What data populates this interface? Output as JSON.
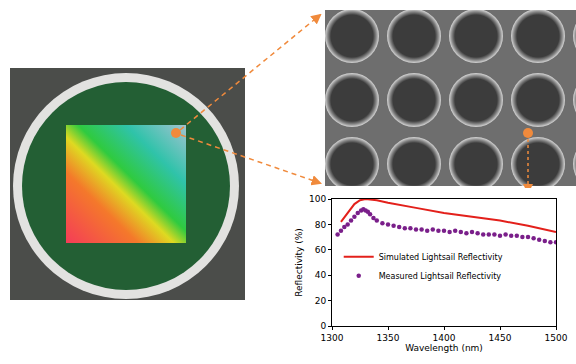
{
  "chart_data": {
    "type": "line",
    "x_label": "Wavelength (nm)",
    "y_label": "Reflectivity (%)",
    "xlim": [
      1300,
      1500
    ],
    "xticks": [
      1300,
      1350,
      1400,
      1450,
      1500
    ],
    "ylim": [
      0,
      100
    ],
    "yticks": [
      0,
      20,
      40,
      60,
      80,
      100
    ],
    "grid": false,
    "legend": "center left",
    "series": [
      {
        "name": "Simulated Lightsail Reflectivity",
        "type": "line",
        "color": "#e3201b",
        "line_style": "solid",
        "x": [
          1308,
          1315,
          1320,
          1325,
          1330,
          1340,
          1350,
          1375,
          1400,
          1425,
          1450,
          1475,
          1500
        ],
        "values": [
          82,
          90,
          96,
          99,
          100,
          99,
          97,
          93,
          89,
          86,
          83,
          79,
          74
        ]
      },
      {
        "name": "Measured Lightsail Reflectivity",
        "type": "scatter",
        "color": "#7a1f8a",
        "marker": "circle",
        "x": [
          1305,
          1308,
          1311,
          1314,
          1317,
          1320,
          1323,
          1326,
          1328,
          1330,
          1332,
          1334,
          1337,
          1340,
          1345,
          1350,
          1355,
          1360,
          1365,
          1370,
          1375,
          1380,
          1385,
          1390,
          1395,
          1400,
          1405,
          1410,
          1415,
          1420,
          1425,
          1430,
          1435,
          1440,
          1445,
          1450,
          1455,
          1460,
          1465,
          1470,
          1475,
          1480,
          1485,
          1490,
          1495,
          1500
        ],
        "values": [
          72,
          75,
          78,
          80,
          83,
          86,
          89,
          91,
          92,
          91,
          90,
          88,
          85,
          83,
          81,
          80,
          79,
          78,
          77,
          77,
          76,
          76,
          75,
          76,
          75,
          75,
          74,
          75,
          74,
          73,
          74,
          73,
          72,
          72,
          72,
          71,
          72,
          71,
          71,
          70,
          70,
          69,
          68,
          67,
          66,
          66
        ]
      }
    ]
  }
}
